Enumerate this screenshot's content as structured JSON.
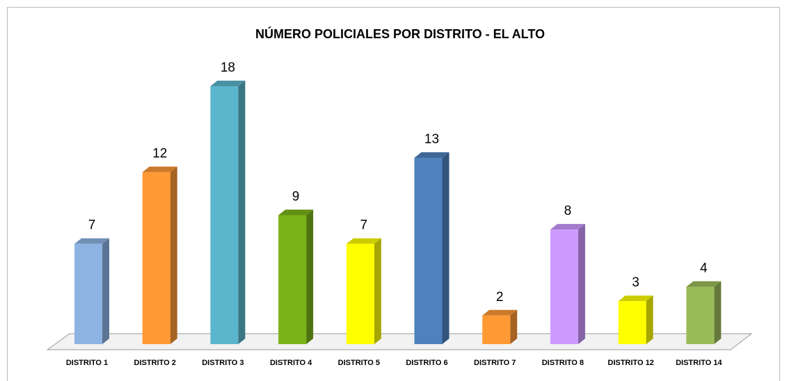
{
  "chart_data": {
    "type": "bar3d",
    "title": "NÚMERO  POLICIALES POR DISTRITO - EL ALTO",
    "categories": [
      "DISTRITO 1",
      "DISTRITO 2",
      "DISTRITO 3",
      "DISTRITO 4",
      "DISTRITO 5",
      "DISTRITO 6",
      "DISTRITO 7",
      "DISTRITO 8",
      "DISTRITO 12",
      "DISTRITO 14"
    ],
    "values": [
      7,
      12,
      18,
      9,
      7,
      13,
      2,
      8,
      3,
      4
    ],
    "colors": [
      "#8db3e2",
      "#ff9933",
      "#5bb5cc",
      "#7ab317",
      "#ffff00",
      "#4f81bd",
      "#ff9933",
      "#cc99ff",
      "#ffff00",
      "#9bbb59"
    ]
  }
}
